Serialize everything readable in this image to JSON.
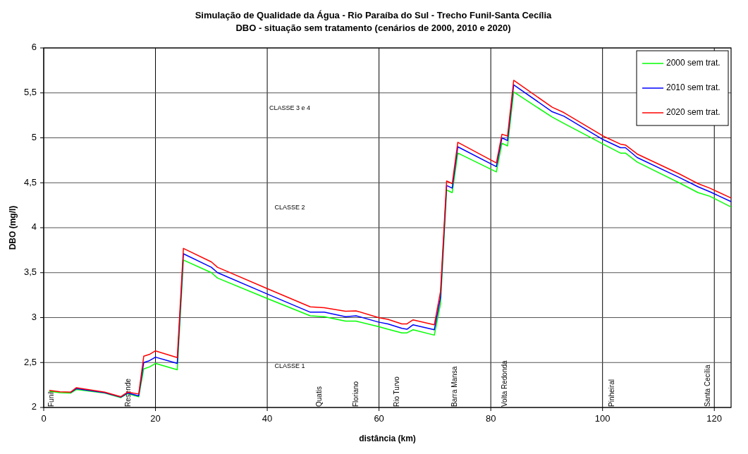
{
  "chart_data": {
    "type": "line",
    "title": "Simulação de Qualidade da Água - Rio  Paraíba do Sul - Trecho Funil-Santa Cecília",
    "subtitle": "DBO - situação sem tratamento (cenários de 2000, 2010 e 2020)",
    "xlabel": "distância (km)",
    "ylabel": "DBO (mg/l)",
    "x": [
      1,
      2.9,
      4.8,
      5.85,
      10.9,
      13.8,
      15,
      17,
      17.9,
      18.9,
      20,
      23.9,
      25,
      30,
      31.1,
      40.1,
      47.7,
      50.2,
      54,
      55.9,
      59.9,
      61.6,
      64.1,
      65,
      66.1,
      69.9,
      71,
      72.1,
      73.1,
      74.1,
      81,
      82,
      83,
      84.1,
      91,
      93.1,
      100.1,
      103.2,
      104.1,
      106.2,
      113.7,
      117.1,
      119.2,
      123
    ],
    "series": [
      {
        "name": "2000 sem trat.",
        "color": "#00ff00",
        "values": [
          2.18,
          2.165,
          2.16,
          2.2,
          2.16,
          2.11,
          2.155,
          2.12,
          2.43,
          2.45,
          2.49,
          2.42,
          3.64,
          3.5,
          3.44,
          3.21,
          3.02,
          3.01,
          2.96,
          2.96,
          2.9,
          2.87,
          2.83,
          2.83,
          2.865,
          2.805,
          3.15,
          4.42,
          4.39,
          4.83,
          4.62,
          4.94,
          4.91,
          5.51,
          5.23,
          5.16,
          4.93,
          4.83,
          4.83,
          4.73,
          4.5,
          4.39,
          4.35,
          4.23
        ]
      },
      {
        "name": "2010 sem trat.",
        "color": "#0000ff",
        "values": [
          null,
          null,
          2.165,
          2.21,
          2.165,
          2.115,
          2.16,
          2.13,
          2.5,
          2.52,
          2.56,
          2.49,
          3.71,
          3.56,
          3.5,
          3.26,
          3.06,
          3.06,
          3.01,
          3.02,
          2.95,
          2.93,
          2.88,
          2.87,
          2.92,
          2.865,
          3.22,
          4.47,
          4.44,
          4.9,
          4.68,
          5,
          4.97,
          5.59,
          5.29,
          5.24,
          4.98,
          4.89,
          4.89,
          4.78,
          4.56,
          4.455,
          4.4,
          4.29
        ]
      },
      {
        "name": "2020 sem trat.",
        "color": "#ff0000",
        "values": [
          2.19,
          2.175,
          2.17,
          2.22,
          2.17,
          2.12,
          2.17,
          2.15,
          2.57,
          2.59,
          2.63,
          2.555,
          3.77,
          3.62,
          3.56,
          3.32,
          3.12,
          3.11,
          3.07,
          3.075,
          3,
          2.98,
          2.93,
          2.93,
          2.975,
          2.92,
          3.29,
          4.52,
          4.49,
          4.95,
          4.72,
          5.04,
          5.02,
          5.64,
          5.34,
          5.28,
          5.02,
          4.93,
          4.92,
          4.82,
          4.6,
          4.49,
          4.44,
          4.33
        ]
      }
    ],
    "xlim": [
      0,
      123
    ],
    "xticks": [
      0,
      20,
      40,
      60,
      80,
      100,
      120
    ],
    "ylim": [
      2,
      6
    ],
    "yticks": [
      2,
      {
        "value": 2.5,
        "label": "2,5"
      },
      3,
      {
        "value": 3.5,
        "label": "3,5"
      },
      4,
      {
        "value": 4.5,
        "label": "4,5"
      },
      5,
      {
        "value": 5.5,
        "label": "5,5"
      },
      6
    ],
    "grid": true,
    "legend": "top right",
    "marker": "none",
    "line_style": "solid",
    "annotations": [
      "CLASSE 1",
      "CLASSE 2",
      "CLASSE 3 e 4",
      "Funil",
      "Resende",
      "Quatis",
      "Floriano",
      "Rio Turvo",
      "Barra Mansa",
      "Volta Redonda",
      "Pinheiral",
      "Santa Cecília"
    ]
  }
}
